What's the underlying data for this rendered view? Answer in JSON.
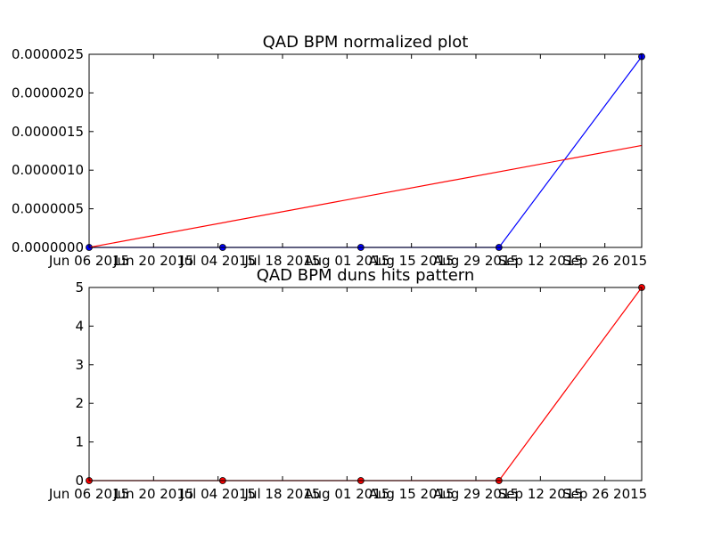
{
  "chart_data": [
    {
      "type": "line",
      "title": "QAD BPM normalized plot",
      "xlabel": "",
      "ylabel": "",
      "xlim": [
        "2015-06-06",
        "2015-10-04"
      ],
      "ylim": [
        0,
        2.5e-06
      ],
      "x_tick_labels": [
        "Jun 06 2015",
        "Jun 20 2015",
        "Jul 04 2015",
        "Jul 18 2015",
        "Aug 01 2015",
        "Aug 15 2015",
        "Aug 29 2015",
        "Sep 12 2015",
        "Sep 26 2015"
      ],
      "x_tick_dates": [
        "2015-06-06",
        "2015-06-20",
        "2015-07-04",
        "2015-07-18",
        "2015-08-01",
        "2015-08-15",
        "2015-08-29",
        "2015-09-12",
        "2015-09-26"
      ],
      "y_tick_labels": [
        "0.0000000",
        "0.0000005",
        "0.0000010",
        "0.0000015",
        "0.0000020",
        "0.0000025"
      ],
      "y_tick_values": [
        0,
        5e-07,
        1e-06,
        1.5e-06,
        2e-06,
        2.5e-06
      ],
      "series": [
        {
          "color": "#0000ff",
          "markers": true,
          "x": [
            "2015-06-06",
            "2015-07-05",
            "2015-08-04",
            "2015-09-03",
            "2015-10-04"
          ],
          "values": [
            0,
            0,
            0,
            0,
            2.47e-06
          ]
        },
        {
          "color": "#ff0000",
          "markers": false,
          "x": [
            "2015-06-06",
            "2015-10-04"
          ],
          "values": [
            0,
            1.32e-06
          ]
        }
      ],
      "grid": false
    },
    {
      "type": "line",
      "title": "QAD BPM duns hits pattern",
      "xlabel": "",
      "ylabel": "",
      "xlim": [
        "2015-06-06",
        "2015-10-04"
      ],
      "ylim": [
        0,
        5
      ],
      "x_tick_labels": [
        "Jun 06 2015",
        "Jun 20 2015",
        "Jul 04 2015",
        "Jul 18 2015",
        "Aug 01 2015",
        "Aug 15 2015",
        "Aug 29 2015",
        "Sep 12 2015",
        "Sep 26 2015"
      ],
      "x_tick_dates": [
        "2015-06-06",
        "2015-06-20",
        "2015-07-04",
        "2015-07-18",
        "2015-08-01",
        "2015-08-15",
        "2015-08-29",
        "2015-09-12",
        "2015-09-26"
      ],
      "y_tick_labels": [
        "0",
        "1",
        "2",
        "3",
        "4",
        "5"
      ],
      "y_tick_values": [
        0,
        1,
        2,
        3,
        4,
        5
      ],
      "series": [
        {
          "color": "#ff0000",
          "markers": true,
          "x": [
            "2015-06-06",
            "2015-07-05",
            "2015-08-04",
            "2015-09-03",
            "2015-10-04"
          ],
          "values": [
            0,
            0,
            0,
            0,
            5
          ]
        }
      ],
      "grid": false
    }
  ]
}
